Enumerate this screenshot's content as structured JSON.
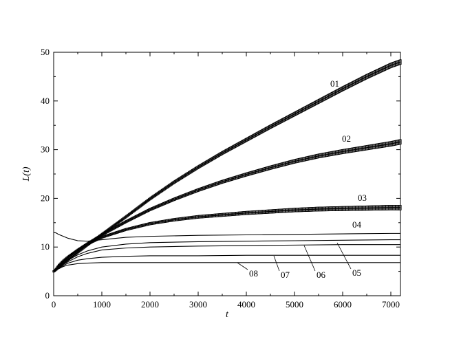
{
  "chart_data": {
    "type": "line",
    "xlabel": "t",
    "ylabel": "L(t)",
    "xlim": [
      0,
      7200
    ],
    "ylim": [
      0,
      50
    ],
    "x_ticks": [
      "0",
      "1000",
      "2000",
      "3000",
      "4000",
      "5000",
      "6000",
      "7000"
    ],
    "y_ticks": [
      "0",
      "10",
      "20",
      "30",
      "40",
      "50"
    ],
    "grid": false,
    "legend": "none",
    "series": [
      {
        "name": "01",
        "marker": "open-square",
        "x": [
          0,
          50,
          100,
          200,
          300,
          500,
          700,
          1000,
          1500,
          2000,
          2500,
          3000,
          3500,
          4000,
          4500,
          5000,
          5500,
          6000,
          6500,
          7000,
          7200
        ],
        "y": [
          5.0,
          5.3,
          6.0,
          6.7,
          7.4,
          8.9,
          10.4,
          12.6,
          16.2,
          19.9,
          23.3,
          26.4,
          29.3,
          32.0,
          34.7,
          37.3,
          39.9,
          42.5,
          45.0,
          47.3,
          48.0
        ]
      },
      {
        "name": "02",
        "marker": "open-square",
        "x": [
          0,
          50,
          100,
          200,
          300,
          500,
          700,
          1000,
          1500,
          2000,
          2500,
          3000,
          3500,
          4000,
          4500,
          5000,
          5500,
          6000,
          6500,
          7000,
          7200
        ],
        "y": [
          5.0,
          5.4,
          6.1,
          7.0,
          7.9,
          9.4,
          10.7,
          12.5,
          15.2,
          17.7,
          19.8,
          21.7,
          23.4,
          24.9,
          26.3,
          27.6,
          28.7,
          29.6,
          30.4,
          31.2,
          31.6
        ]
      },
      {
        "name": "03",
        "marker": "open-square",
        "x": [
          0,
          50,
          100,
          200,
          300,
          500,
          700,
          1000,
          1500,
          2000,
          2500,
          3000,
          3500,
          4000,
          4500,
          5000,
          5500,
          6000,
          6500,
          7000,
          7200
        ],
        "y": [
          5.0,
          5.5,
          6.2,
          7.2,
          8.0,
          9.4,
          10.6,
          12.0,
          13.6,
          14.8,
          15.6,
          16.2,
          16.6,
          17.0,
          17.3,
          17.6,
          17.8,
          17.9,
          18.0,
          18.1,
          18.1
        ]
      },
      {
        "name": "04",
        "marker": "none",
        "x": [
          0,
          50,
          100,
          200,
          300,
          500,
          700,
          1000,
          1500,
          2000,
          3000,
          4000,
          5000,
          6000,
          7000,
          7200
        ],
        "y": [
          13.0,
          12.9,
          12.6,
          12.2,
          11.8,
          11.3,
          11.2,
          11.5,
          12.0,
          12.2,
          12.4,
          12.5,
          12.6,
          12.7,
          12.8,
          12.8
        ]
      },
      {
        "name": "05",
        "marker": "none",
        "x": [
          0,
          50,
          100,
          200,
          300,
          500,
          700,
          1000,
          1500,
          2000,
          3000,
          4000,
          5000,
          6000,
          7000,
          7200
        ],
        "y": [
          4.8,
          5.2,
          5.8,
          6.6,
          7.3,
          8.4,
          9.2,
          10.0,
          10.6,
          10.9,
          11.1,
          11.2,
          11.3,
          11.4,
          11.5,
          11.5
        ]
      },
      {
        "name": "06",
        "marker": "none",
        "x": [
          0,
          50,
          100,
          200,
          300,
          500,
          700,
          1000,
          1500,
          2000,
          3000,
          4000,
          5000,
          6000,
          7000,
          7200
        ],
        "y": [
          4.8,
          5.2,
          5.7,
          6.4,
          7.0,
          8.0,
          8.7,
          9.4,
          9.8,
          10.0,
          10.2,
          10.3,
          10.4,
          10.5,
          10.5,
          10.5
        ]
      },
      {
        "name": "07",
        "marker": "none",
        "x": [
          0,
          50,
          100,
          200,
          300,
          500,
          700,
          1000,
          1500,
          2000,
          3000,
          4000,
          5000,
          6000,
          7000,
          7200
        ],
        "y": [
          4.8,
          5.2,
          5.6,
          6.2,
          6.7,
          7.3,
          7.6,
          7.9,
          8.1,
          8.2,
          8.2,
          8.3,
          8.3,
          8.3,
          8.3,
          8.3
        ]
      },
      {
        "name": "08",
        "marker": "none",
        "x": [
          0,
          50,
          100,
          200,
          300,
          500,
          700,
          1000,
          1500,
          2000,
          3000,
          4000,
          5000,
          6000,
          7000,
          7200
        ],
        "y": [
          4.8,
          5.2,
          5.5,
          6.0,
          6.3,
          6.6,
          6.7,
          6.8,
          6.8,
          6.8,
          6.8,
          6.8,
          6.8,
          6.8,
          6.8,
          6.8
        ]
      }
    ],
    "annotations": [
      "01",
      "02",
      "03",
      "04",
      "05",
      "06",
      "07",
      "08"
    ]
  }
}
